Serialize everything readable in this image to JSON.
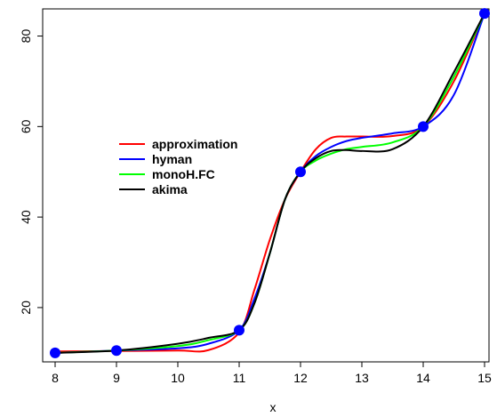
{
  "chart_data": {
    "type": "line",
    "title": "",
    "xlabel": "x",
    "ylabel": "",
    "xlim": [
      8,
      15
    ],
    "ylim": [
      8,
      86
    ],
    "x_ticks": [
      8,
      9,
      10,
      11,
      12,
      13,
      14,
      15
    ],
    "y_ticks": [
      20,
      40,
      60,
      80
    ],
    "grid": false,
    "legend_position": "left",
    "points": {
      "name": "",
      "color": "#0000ff",
      "x": [
        8,
        9,
        11,
        12,
        14,
        15
      ],
      "y": [
        10,
        10.5,
        15,
        50,
        60,
        85
      ]
    },
    "series": [
      {
        "name": "approximation",
        "color": "#ff0000",
        "x": [
          8,
          9,
          10,
          10.5,
          11,
          11.25,
          11.5,
          11.75,
          12,
          12.25,
          12.5,
          12.75,
          13,
          13.5,
          14,
          14.5,
          15
        ],
        "y": [
          10.3,
          10.4,
          10.5,
          10.6,
          14.5,
          24,
          35,
          44,
          50,
          55,
          57.5,
          57.8,
          57.8,
          57.9,
          60,
          70,
          85
        ]
      },
      {
        "name": "hyman",
        "color": "#0000ff",
        "x": [
          8,
          9,
          10,
          10.5,
          11,
          11.25,
          11.5,
          11.75,
          12,
          12.25,
          12.5,
          12.75,
          13,
          13.5,
          14,
          14.5,
          15
        ],
        "y": [
          10,
          10.5,
          11,
          12,
          15,
          22,
          32,
          44,
          50,
          53.5,
          55.5,
          56.8,
          57.5,
          58.5,
          60,
          67,
          85
        ]
      },
      {
        "name": "monoH.FC",
        "color": "#00ff00",
        "x": [
          8,
          9,
          10,
          10.5,
          11,
          11.25,
          11.5,
          11.75,
          12,
          12.25,
          12.5,
          12.75,
          13,
          13.5,
          14,
          14.5,
          15
        ],
        "y": [
          10,
          10.5,
          11.5,
          12.8,
          15,
          21,
          32,
          44,
          50,
          52.5,
          54,
          55,
          55.5,
          56.5,
          60,
          71,
          85
        ]
      },
      {
        "name": "akima",
        "color": "#000000",
        "x": [
          8,
          9,
          10,
          10.5,
          11,
          11.25,
          11.5,
          11.75,
          12,
          12.25,
          12.5,
          12.75,
          13,
          13.5,
          14,
          14.5,
          15
        ],
        "y": [
          10,
          10.5,
          12,
          13.3,
          15,
          21,
          32,
          44,
          50,
          53,
          54.6,
          54.8,
          54.6,
          55,
          60,
          72,
          85
        ]
      }
    ]
  }
}
